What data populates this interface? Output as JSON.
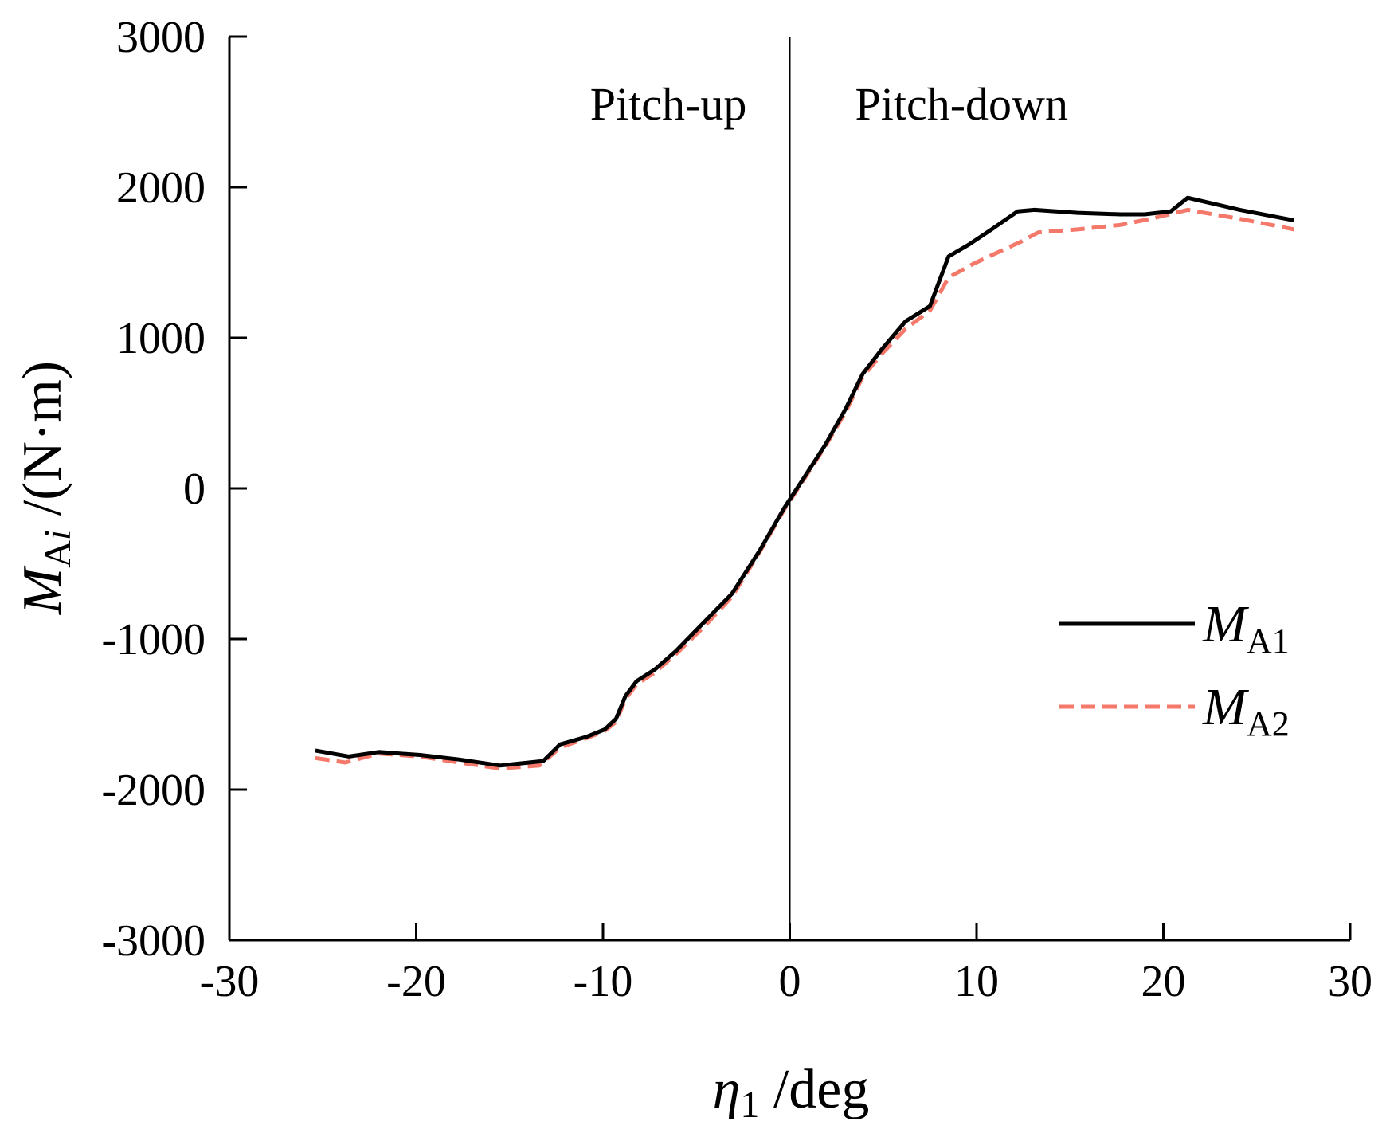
{
  "chart_data": {
    "type": "line",
    "title": "",
    "xlabel": {
      "symbol": "η",
      "subscript": "1",
      "unit": " /deg"
    },
    "ylabel": {
      "symbol": "M",
      "subscript_upright": "A",
      "subscript_italic": "i",
      "unit": " /(N·m)"
    },
    "xlim": [
      -30,
      30
    ],
    "ylim": [
      -3000,
      3000
    ],
    "xticks": [
      -30,
      -20,
      -10,
      0,
      10,
      20,
      30
    ],
    "yticks": [
      -3000,
      -2000,
      -1000,
      0,
      1000,
      2000,
      3000
    ],
    "grid": false,
    "legend_position": "right",
    "reference_line_x": 0,
    "annotations": [
      {
        "text": "Pitch-up",
        "x": -6.5,
        "y": 2450
      },
      {
        "text": "Pitch-down",
        "x": 9.2,
        "y": 2450
      }
    ],
    "colors": {
      "axis": "#000000",
      "series1": "#000000",
      "series2": "#f4796b"
    },
    "series": [
      {
        "name": "M",
        "name_subscript": "A1",
        "style": "solid",
        "points": [
          [
            -25.4,
            -1740
          ],
          [
            -23.6,
            -1780
          ],
          [
            -22.0,
            -1750
          ],
          [
            -19.8,
            -1770
          ],
          [
            -17.7,
            -1800
          ],
          [
            -15.5,
            -1840
          ],
          [
            -13.2,
            -1810
          ],
          [
            -12.3,
            -1700
          ],
          [
            -10.9,
            -1650
          ],
          [
            -9.9,
            -1600
          ],
          [
            -9.3,
            -1530
          ],
          [
            -8.8,
            -1380
          ],
          [
            -8.2,
            -1280
          ],
          [
            -7.2,
            -1200
          ],
          [
            -6.1,
            -1080
          ],
          [
            -4.6,
            -890
          ],
          [
            -3.1,
            -700
          ],
          [
            -1.6,
            -410
          ],
          [
            -0.3,
            -130
          ],
          [
            0.6,
            40
          ],
          [
            1.9,
            290
          ],
          [
            3.0,
            530
          ],
          [
            3.9,
            760
          ],
          [
            4.9,
            920
          ],
          [
            6.2,
            1110
          ],
          [
            7.5,
            1210
          ],
          [
            8.5,
            1540
          ],
          [
            9.6,
            1620
          ],
          [
            10.8,
            1720
          ],
          [
            12.2,
            1840
          ],
          [
            13.1,
            1850
          ],
          [
            15.4,
            1830
          ],
          [
            17.7,
            1820
          ],
          [
            19.0,
            1820
          ],
          [
            20.4,
            1840
          ],
          [
            21.3,
            1930
          ],
          [
            24.1,
            1850
          ],
          [
            27.0,
            1780
          ]
        ]
      },
      {
        "name": "M",
        "name_subscript": "A2",
        "style": "dashed",
        "points": [
          [
            -25.4,
            -1790
          ],
          [
            -23.8,
            -1820
          ],
          [
            -22.0,
            -1760
          ],
          [
            -19.8,
            -1780
          ],
          [
            -17.7,
            -1820
          ],
          [
            -15.5,
            -1860
          ],
          [
            -13.4,
            -1840
          ],
          [
            -12.3,
            -1720
          ],
          [
            -10.9,
            -1660
          ],
          [
            -9.9,
            -1610
          ],
          [
            -9.3,
            -1550
          ],
          [
            -8.8,
            -1400
          ],
          [
            -8.2,
            -1300
          ],
          [
            -7.2,
            -1220
          ],
          [
            -6.1,
            -1100
          ],
          [
            -4.6,
            -920
          ],
          [
            -3.1,
            -720
          ],
          [
            -1.6,
            -420
          ],
          [
            -0.3,
            -140
          ],
          [
            0.6,
            30
          ],
          [
            1.9,
            280
          ],
          [
            3.0,
            510
          ],
          [
            3.9,
            740
          ],
          [
            4.9,
            890
          ],
          [
            6.2,
            1060
          ],
          [
            7.5,
            1180
          ],
          [
            8.5,
            1400
          ],
          [
            9.8,
            1490
          ],
          [
            11.0,
            1560
          ],
          [
            12.4,
            1640
          ],
          [
            13.3,
            1700
          ],
          [
            15.4,
            1720
          ],
          [
            17.7,
            1750
          ],
          [
            19.3,
            1790
          ],
          [
            21.3,
            1850
          ],
          [
            24.1,
            1790
          ],
          [
            27.0,
            1720
          ]
        ]
      }
    ]
  }
}
